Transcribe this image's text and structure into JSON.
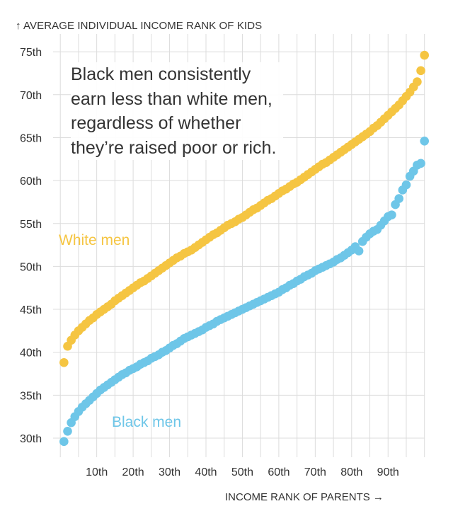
{
  "chart_data": {
    "type": "scatter",
    "ylabel": "↑ AVERAGE INDIVIDUAL INCOME RANK OF KIDS",
    "xlabel": "INCOME RANK OF PARENTS →",
    "annotation": "Black men consistently earn less than white men, regardless of whether they’re raised poor or rich.",
    "xlim": [
      0,
      100
    ],
    "ylim": [
      29,
      76
    ],
    "x_ticks": [
      10,
      20,
      30,
      40,
      50,
      60,
      70,
      80,
      90
    ],
    "x_tick_labels": [
      "10th",
      "20th",
      "30th",
      "40th",
      "50th",
      "60th",
      "70th",
      "80th",
      "90th"
    ],
    "y_ticks": [
      30,
      35,
      40,
      45,
      50,
      55,
      60,
      65,
      70,
      75
    ],
    "y_tick_labels": [
      "30th",
      "35th",
      "40th",
      "45th",
      "50th",
      "55th",
      "60th",
      "65th",
      "70th",
      "75th"
    ],
    "grid": true,
    "x": [
      1,
      2,
      3,
      4,
      5,
      6,
      7,
      8,
      9,
      10,
      11,
      12,
      13,
      14,
      15,
      16,
      17,
      18,
      19,
      20,
      21,
      22,
      23,
      24,
      25,
      26,
      27,
      28,
      29,
      30,
      31,
      32,
      33,
      34,
      35,
      36,
      37,
      38,
      39,
      40,
      41,
      42,
      43,
      44,
      45,
      46,
      47,
      48,
      49,
      50,
      51,
      52,
      53,
      54,
      55,
      56,
      57,
      58,
      59,
      60,
      61,
      62,
      63,
      64,
      65,
      66,
      67,
      68,
      69,
      70,
      71,
      72,
      73,
      74,
      75,
      76,
      77,
      78,
      79,
      80,
      81,
      82,
      83,
      84,
      85,
      86,
      87,
      88,
      89,
      90,
      91,
      92,
      93,
      94,
      95,
      96,
      97,
      98,
      99,
      100
    ],
    "series": [
      {
        "name": "White men",
        "color": "#f5c542",
        "values": [
          38.8,
          40.7,
          41.4,
          42.0,
          42.5,
          42.9,
          43.3,
          43.7,
          44.0,
          44.4,
          44.7,
          45.0,
          45.3,
          45.6,
          46.0,
          46.3,
          46.6,
          46.9,
          47.2,
          47.5,
          47.8,
          48.1,
          48.3,
          48.6,
          48.9,
          49.2,
          49.5,
          49.8,
          50.1,
          50.4,
          50.7,
          51.0,
          51.2,
          51.5,
          51.7,
          51.9,
          52.2,
          52.5,
          52.8,
          53.1,
          53.4,
          53.7,
          53.9,
          54.2,
          54.5,
          54.8,
          55.0,
          55.2,
          55.5,
          55.7,
          56.0,
          56.3,
          56.6,
          56.8,
          57.1,
          57.4,
          57.7,
          57.9,
          58.2,
          58.5,
          58.8,
          59.0,
          59.3,
          59.6,
          59.8,
          60.1,
          60.4,
          60.7,
          61.0,
          61.3,
          61.6,
          61.9,
          62.1,
          62.4,
          62.7,
          63.0,
          63.3,
          63.6,
          63.9,
          64.2,
          64.5,
          64.8,
          65.1,
          65.4,
          65.7,
          66.1,
          66.4,
          66.8,
          67.2,
          67.6,
          68.0,
          68.4,
          68.8,
          69.3,
          69.8,
          70.3,
          70.9,
          71.5,
          72.8,
          74.6
        ]
      },
      {
        "name": "Black men",
        "color": "#6ec6e8",
        "values": [
          29.6,
          30.8,
          31.8,
          32.5,
          33.1,
          33.6,
          34.0,
          34.4,
          34.8,
          35.2,
          35.6,
          35.9,
          36.2,
          36.5,
          36.8,
          37.1,
          37.4,
          37.6,
          37.9,
          38.1,
          38.3,
          38.6,
          38.8,
          39.0,
          39.3,
          39.5,
          39.7,
          40.0,
          40.2,
          40.5,
          40.8,
          41.0,
          41.3,
          41.6,
          41.8,
          42.0,
          42.2,
          42.4,
          42.6,
          42.9,
          43.1,
          43.3,
          43.6,
          43.8,
          44.0,
          44.2,
          44.4,
          44.6,
          44.8,
          45.0,
          45.2,
          45.4,
          45.6,
          45.8,
          46.0,
          46.2,
          46.4,
          46.6,
          46.8,
          47.0,
          47.3,
          47.5,
          47.8,
          48.0,
          48.3,
          48.5,
          48.8,
          49.0,
          49.2,
          49.5,
          49.7,
          49.9,
          50.1,
          50.3,
          50.5,
          50.8,
          51.0,
          51.3,
          51.6,
          51.9,
          52.3,
          51.8,
          52.9,
          53.4,
          53.8,
          54.1,
          54.3,
          54.8,
          55.3,
          55.8,
          56.0,
          57.2,
          57.9,
          58.9,
          59.5,
          60.5,
          61.1,
          61.8,
          62.0,
          64.6
        ]
      }
    ]
  }
}
